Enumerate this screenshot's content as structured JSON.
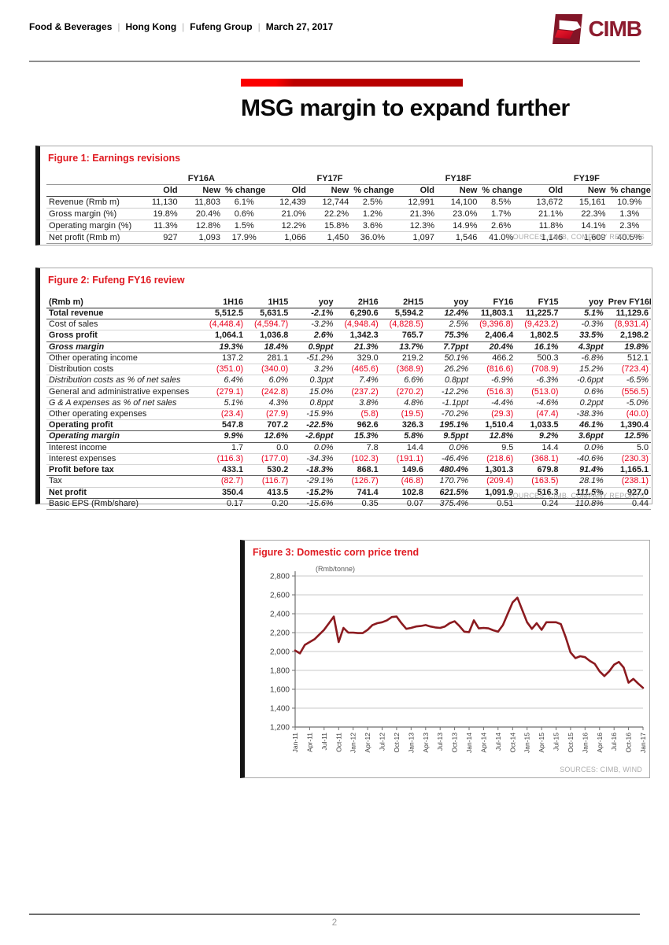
{
  "header": {
    "breadcrumb": [
      "Food & Beverages",
      "Hong Kong",
      "Fufeng Group",
      "March 27, 2017"
    ],
    "logo_text": "CIMB"
  },
  "title": "MSG margin to expand further",
  "figure1": {
    "title": "Figure 1: Earnings revisions",
    "group_headers": [
      "FY16A",
      "FY17F",
      "FY18F",
      "FY19F"
    ],
    "sub_headers": [
      "Old",
      "New",
      "% change"
    ],
    "rows": [
      {
        "label": "Revenue (Rmb m)",
        "values": [
          "11,130",
          "11,803",
          "6.1%",
          "12,439",
          "12,744",
          "2.5%",
          "12,991",
          "14,100",
          "8.5%",
          "13,672",
          "15,161",
          "10.9%"
        ]
      },
      {
        "label": "Gross margin (%)",
        "values": [
          "19.8%",
          "20.4%",
          "0.6%",
          "21.0%",
          "22.2%",
          "1.2%",
          "21.3%",
          "23.0%",
          "1.7%",
          "21.1%",
          "22.3%",
          "1.3%"
        ]
      },
      {
        "label": "Operating margin (%)",
        "values": [
          "11.3%",
          "12.8%",
          "1.5%",
          "12.2%",
          "15.8%",
          "3.6%",
          "12.3%",
          "14.9%",
          "2.6%",
          "11.8%",
          "14.1%",
          "2.3%"
        ]
      },
      {
        "label": "Net profit (Rmb m)",
        "values": [
          "927",
          "1,093",
          "17.9%",
          "1,066",
          "1,450",
          "36.0%",
          "1,097",
          "1,546",
          "41.0%",
          "1,146",
          "1,609",
          "40.5%"
        ]
      }
    ],
    "source": "SOURCES: CIMB, COMPANY REPORTS"
  },
  "figure2": {
    "title": "Figure 2: Fufeng FY16 review",
    "headers": [
      "(Rmb m)",
      "1H16",
      "1H15",
      "yoy",
      "2H16",
      "2H15",
      "yoy",
      "FY16",
      "FY15",
      "yoy",
      "Prev FY16F"
    ],
    "rows": [
      {
        "label": "Total revenue",
        "style": "bold",
        "values": [
          "5,512.5",
          "5,631.5",
          "-2.1%",
          "6,290.6",
          "5,594.2",
          "12.4%",
          "11,803.1",
          "11,225.7",
          "5.1%",
          "11,129.6"
        ]
      },
      {
        "label": "Cost of sales",
        "style": "normal",
        "values": [
          "(4,448.4)",
          "(4,594.7)",
          "-3.2%",
          "(4,948.4)",
          "(4,828.5)",
          "2.5%",
          "(9,396.8)",
          "(9,423.2)",
          "-0.3%",
          "(8,931.4)"
        ]
      },
      {
        "label": "Gross profit",
        "style": "bold",
        "values": [
          "1,064.1",
          "1,036.8",
          "2.6%",
          "1,342.3",
          "765.7",
          "75.3%",
          "2,406.4",
          "1,802.5",
          "33.5%",
          "2,198.2"
        ]
      },
      {
        "label": "Gross margin",
        "style": "bi",
        "values": [
          "19.3%",
          "18.4%",
          "0.9ppt",
          "21.3%",
          "13.7%",
          "7.7ppt",
          "20.4%",
          "16.1%",
          "4.3ppt",
          "19.8%"
        ]
      },
      {
        "label": "Other operating income",
        "style": "normal",
        "values": [
          "137.2",
          "281.1",
          "-51.2%",
          "329.0",
          "219.2",
          "50.1%",
          "466.2",
          "500.3",
          "-6.8%",
          "512.1"
        ]
      },
      {
        "label": "Distribution costs",
        "style": "normal",
        "values": [
          "(351.0)",
          "(340.0)",
          "3.2%",
          "(465.6)",
          "(368.9)",
          "26.2%",
          "(816.6)",
          "(708.9)",
          "15.2%",
          "(723.4)"
        ]
      },
      {
        "label": "Distribution costs as % of net sales",
        "style": "it",
        "values": [
          "6.4%",
          "6.0%",
          "0.3ppt",
          "7.4%",
          "6.6%",
          "0.8ppt",
          "-6.9%",
          "-6.3%",
          "-0.6ppt",
          "-6.5%"
        ]
      },
      {
        "label": "General and administrative expenses",
        "style": "normal",
        "values": [
          "(279.1)",
          "(242.8)",
          "15.0%",
          "(237.2)",
          "(270.2)",
          "-12.2%",
          "(516.3)",
          "(513.0)",
          "0.6%",
          "(556.5)"
        ]
      },
      {
        "label": "G & A expenses as % of net sales",
        "style": "it",
        "values": [
          "5.1%",
          "4.3%",
          "0.8ppt",
          "3.8%",
          "4.8%",
          "-1.1ppt",
          "-4.4%",
          "-4.6%",
          "0.2ppt",
          "-5.0%"
        ]
      },
      {
        "label": "Other operating expenses",
        "style": "normal",
        "values": [
          "(23.4)",
          "(27.9)",
          "-15.9%",
          "(5.8)",
          "(19.5)",
          "-70.2%",
          "(29.3)",
          "(47.4)",
          "-38.3%",
          "(40.0)"
        ]
      },
      {
        "label": "Operating profit",
        "style": "bold",
        "values": [
          "547.8",
          "707.2",
          "-22.5%",
          "962.6",
          "326.3",
          "195.1%",
          "1,510.4",
          "1,033.5",
          "46.1%",
          "1,390.4"
        ]
      },
      {
        "label": "Operating margin",
        "style": "bi",
        "values": [
          "9.9%",
          "12.6%",
          "-2.6ppt",
          "15.3%",
          "5.8%",
          "9.5ppt",
          "12.8%",
          "9.2%",
          "3.6ppt",
          "12.5%"
        ]
      },
      {
        "label": "Interest income",
        "style": "normal",
        "values": [
          "1.7",
          "0.0",
          "0.0%",
          "7.8",
          "14.4",
          "0.0%",
          "9.5",
          "14.4",
          "0.0%",
          "5.0"
        ]
      },
      {
        "label": "Interest expenses",
        "style": "normal",
        "values": [
          "(116.3)",
          "(177.0)",
          "-34.3%",
          "(102.3)",
          "(191.1)",
          "-46.4%",
          "(218.6)",
          "(368.1)",
          "-40.6%",
          "(230.3)"
        ]
      },
      {
        "label": "Profit before tax",
        "style": "bold",
        "values": [
          "433.1",
          "530.2",
          "-18.3%",
          "868.1",
          "149.6",
          "480.4%",
          "1,301.3",
          "679.8",
          "91.4%",
          "1,165.1"
        ]
      },
      {
        "label": "Tax",
        "style": "normal",
        "values": [
          "(82.7)",
          "(116.7)",
          "-29.1%",
          "(126.7)",
          "(46.8)",
          "170.7%",
          "(209.4)",
          "(163.5)",
          "28.1%",
          "(238.1)"
        ]
      },
      {
        "label": "Net profit",
        "style": "bold",
        "values": [
          "350.4",
          "413.5",
          "-15.2%",
          "741.4",
          "102.8",
          "621.5%",
          "1,091.9",
          "516.3",
          "111.5%",
          "927.0"
        ]
      },
      {
        "label": "Basic EPS (Rmb/share)",
        "style": "normal",
        "values": [
          "0.17",
          "0.20",
          "-15.6%",
          "0.35",
          "0.07",
          "375.4%",
          "0.51",
          "0.24",
          "110.8%",
          "0.44"
        ]
      }
    ],
    "source": "SOURCES: CIMB, COMPANY REPORTS"
  },
  "figure3": {
    "title": "Figure 3: Domestic corn price trend",
    "source": "SOURCES: CIMB, WIND"
  },
  "chart_data": {
    "type": "line",
    "title": "Figure 3: Domestic corn price trend",
    "unit_label": "(Rmb/tonne)",
    "x_tick_labels": [
      "Jan-11",
      "Apr-11",
      "Jul-11",
      "Oct-11",
      "Jan-12",
      "Apr-12",
      "Jul-12",
      "Oct-12",
      "Jan-13",
      "Apr-13",
      "Jul-13",
      "Oct-13",
      "Jan-14",
      "Apr-14",
      "Jul-14",
      "Oct-14",
      "Jan-15",
      "Apr-15",
      "Jul-15",
      "Oct-15",
      "Jan-16",
      "Apr-16",
      "Jul-16",
      "Oct-16",
      "Jan-17"
    ],
    "x_tick_every": 3,
    "values": [
      2010,
      1980,
      2070,
      2100,
      2130,
      2180,
      2230,
      2300,
      2370,
      2100,
      2250,
      2200,
      2200,
      2195,
      2195,
      2230,
      2280,
      2300,
      2310,
      2330,
      2365,
      2370,
      2300,
      2240,
      2250,
      2265,
      2270,
      2280,
      2265,
      2255,
      2250,
      2265,
      2300,
      2320,
      2270,
      2210,
      2205,
      2330,
      2245,
      2250,
      2245,
      2225,
      2210,
      2280,
      2400,
      2520,
      2570,
      2440,
      2310,
      2240,
      2300,
      2230,
      2310,
      2310,
      2310,
      2290,
      2150,
      1990,
      1930,
      1950,
      1940,
      1900,
      1870,
      1790,
      1740,
      1790,
      1860,
      1890,
      1830,
      1670,
      1710,
      1660,
      1615
    ],
    "ylim": [
      1200,
      2800
    ],
    "y_ticks": [
      1200,
      1400,
      1600,
      1800,
      2000,
      2200,
      2400,
      2600,
      2800
    ],
    "grid": true,
    "legend": "none",
    "line_color": "#8b1a1f"
  },
  "footer": {
    "page_number": "2"
  },
  "colors": {
    "accent_red": "#e01b22",
    "negative_red": "#e8001d",
    "brand_maroon": "#8c1b2e",
    "line": "#8b1a1f"
  }
}
